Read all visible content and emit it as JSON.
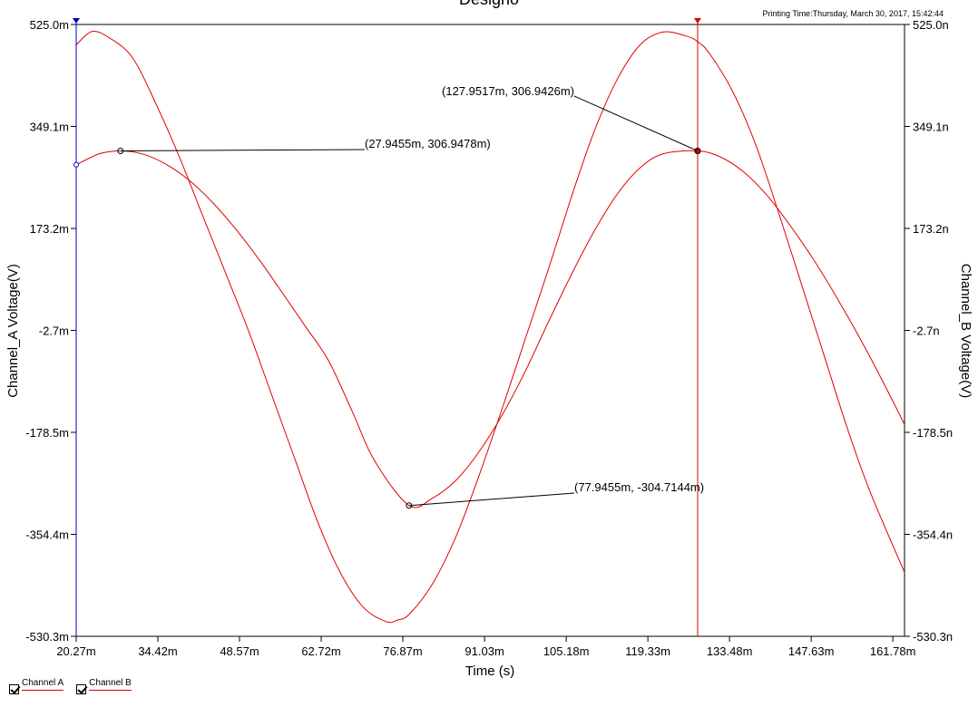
{
  "chart_data": {
    "type": "line",
    "title": "Designo",
    "printing_time": "Printing Time:Thursday, March 30, 2017, 15:42:44",
    "xlabel": "Time (s)",
    "ylabel_left": "Channel_A Voltage(V)",
    "ylabel_right": "Channel_B Voltage(V)",
    "xlim": [
      20.27,
      163.8
    ],
    "ylim": [
      -530.3,
      525.0
    ],
    "x_ticks": [
      {
        "value": 20.27,
        "label": "20.27m"
      },
      {
        "value": 34.42,
        "label": "34.42m"
      },
      {
        "value": 48.57,
        "label": "48.57m"
      },
      {
        "value": 62.72,
        "label": "62.72m"
      },
      {
        "value": 76.87,
        "label": "76.87m"
      },
      {
        "value": 91.03,
        "label": "91.03m"
      },
      {
        "value": 105.18,
        "label": "105.18m"
      },
      {
        "value": 119.33,
        "label": "119.33m"
      },
      {
        "value": 133.48,
        "label": "133.48m"
      },
      {
        "value": 147.63,
        "label": "147.63m"
      },
      {
        "value": 161.78,
        "label": "161.78m"
      }
    ],
    "y_ticks_left": [
      {
        "value": 525.0,
        "label": "525.0m"
      },
      {
        "value": 349.1,
        "label": "349.1m"
      },
      {
        "value": 173.2,
        "label": "173.2m"
      },
      {
        "value": -2.7,
        "label": "-2.7m"
      },
      {
        "value": -178.5,
        "label": "-178.5m"
      },
      {
        "value": -354.4,
        "label": "-354.4m"
      },
      {
        "value": -530.3,
        "label": "-530.3m"
      }
    ],
    "y_ticks_right": [
      {
        "value": 525.0,
        "label": "525.0n"
      },
      {
        "value": 349.1,
        "label": "349.1n"
      },
      {
        "value": 173.2,
        "label": "173.2n"
      },
      {
        "value": -2.7,
        "label": "-2.7n"
      },
      {
        "value": -178.5,
        "label": "-178.5n"
      },
      {
        "value": -354.4,
        "label": "-354.4n"
      },
      {
        "value": -530.3,
        "label": "-530.3n"
      }
    ],
    "series": [
      {
        "name": "Channel A",
        "color": "#e00000",
        "x": [
          20.27,
          24.3,
          27.95,
          32.0,
          36.0,
          40.0,
          44.0,
          48.0,
          52.0,
          56.0,
          60.0,
          64.0,
          68.0,
          72.0,
          77.95,
          82.0,
          86.0,
          90.0,
          94.0,
          98.0,
          102.0,
          106.0,
          110.0,
          114.0,
          118.0,
          122.0,
          127.95,
          132.0,
          136.0,
          140.0,
          144.0,
          148.0,
          152.0,
          156.0,
          160.0,
          163.8
        ],
        "y": [
          283.0,
          302.0,
          306.9,
          301.0,
          283.0,
          255.0,
          217.0,
          171.0,
          119.0,
          62.0,
          4.0,
          -55.0,
          -140.0,
          -228.0,
          -304.7,
          -292.0,
          -262.0,
          -213.0,
          -150.0,
          -75.0,
          10.0,
          92.0,
          168.0,
          232.0,
          278.0,
          302.0,
          306.9,
          296.0,
          270.0,
          230.0,
          178.0,
          120.0,
          55.0,
          -15.0,
          -90.0,
          -165.0
        ]
      },
      {
        "name": "Channel B",
        "color": "#e00000",
        "x": [
          20.27,
          23.0,
          26.0,
          30.0,
          34.0,
          38.0,
          42.0,
          46.0,
          50.0,
          54.0,
          58.0,
          62.0,
          66.0,
          70.0,
          74.0,
          76.0,
          78.0,
          82.0,
          86.0,
          90.0,
          94.0,
          98.0,
          102.0,
          106.0,
          110.0,
          114.0,
          118.0,
          122.0,
          126.0,
          128.0,
          130.0,
          134.0,
          138.0,
          142.0,
          146.0,
          150.0,
          154.0,
          158.0,
          163.8
        ],
        "y": [
          490.0,
          513.0,
          502.0,
          468.0,
          390.0,
          300.0,
          200.0,
          100.0,
          0.0,
          -110.0,
          -220.0,
          -330.0,
          -420.0,
          -480.0,
          -505.0,
          -502.0,
          -492.0,
          -440.0,
          -360.0,
          -255.0,
          -140.0,
          -20.0,
          100.0,
          225.0,
          340.0,
          430.0,
          490.0,
          512.0,
          505.0,
          495.0,
          475.0,
          410.0,
          318.0,
          200.0,
          75.0,
          -50.0,
          -175.0,
          -285.0,
          -420.0
        ]
      }
    ],
    "annotations": [
      {
        "x": 27.9455,
        "y": 306.9478,
        "label": "(27.9455m, 306.9478m)"
      },
      {
        "x": 77.9455,
        "y": -304.7144,
        "label": "(77.9455m, -304.7144m)"
      },
      {
        "x": 127.9517,
        "y": 306.9426,
        "label": "(127.9517m, 306.9426m)"
      }
    ],
    "cursors": [
      {
        "x": 20.27,
        "color": "#0000cc"
      },
      {
        "x": 127.9517,
        "color": "#e00000"
      }
    ],
    "grid": false,
    "legend_position": "bottom-left"
  },
  "legend": {
    "items": [
      {
        "label": "Channel A",
        "checked": true
      },
      {
        "label": "Channel B",
        "checked": true
      }
    ]
  }
}
